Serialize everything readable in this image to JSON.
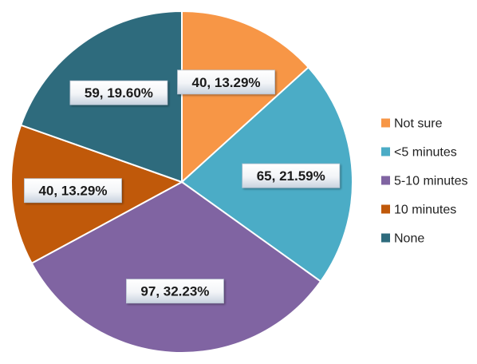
{
  "chart_data": {
    "type": "pie",
    "title": "",
    "series": [
      {
        "name": "Not sure",
        "value": 40,
        "percent": "13.29%",
        "label": "40, 13.29%",
        "color": "#F79646"
      },
      {
        "name": "<5 minutes",
        "value": 65,
        "percent": "21.59%",
        "label": "65, 21.59%",
        "color": "#4BACC6"
      },
      {
        "name": "5-10 minutes",
        "value": 97,
        "percent": "32.23%",
        "label": "97, 32.23%",
        "color": "#8064A2"
      },
      {
        "name": "10 minutes",
        "value": 40,
        "percent": "13.29%",
        "label": "40, 13.29%",
        "color": "#C0590A"
      },
      {
        "name": "None",
        "value": 59,
        "percent": "19.60%",
        "label": "59, 19.60%",
        "color": "#2E6B7D"
      }
    ],
    "start_angle": "12 o'clock",
    "direction": "clockwise",
    "legend_placement": "right"
  }
}
